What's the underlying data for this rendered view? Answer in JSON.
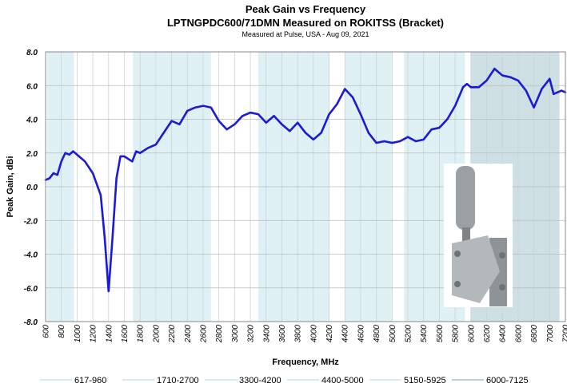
{
  "chart_data": {
    "type": "line",
    "title": "Peak Gain vs Frequency",
    "subtitle": "LPTNGPDC600/71DMN Measured on ROKITSS (Bracket)",
    "caption": "Measured at Pulse, USA - Aug 09, 2021",
    "x_label": "Frequency, MHz",
    "y_label": "Peak Gain, dBi",
    "xlim": [
      600,
      7200
    ],
    "xticks": [
      600,
      800,
      1000,
      1200,
      1400,
      1600,
      1800,
      2000,
      2200,
      2400,
      2600,
      2800,
      3000,
      3200,
      3400,
      3600,
      3800,
      4000,
      4200,
      4400,
      4600,
      4800,
      5000,
      5200,
      5400,
      5600,
      5800,
      6000,
      6200,
      6400,
      6600,
      6800,
      7000,
      7200
    ],
    "ylim": [
      -8,
      8
    ],
    "yticks": [
      {
        "value": -8,
        "label": "-8.0"
      },
      {
        "value": -6,
        "label": "-6.0"
      },
      {
        "value": -4,
        "label": "-4.0"
      },
      {
        "value": -2,
        "label": "-2.0"
      },
      {
        "value": 0,
        "label": "0.0"
      },
      {
        "value": 2,
        "label": "2.0"
      },
      {
        "value": 4,
        "label": "4.0"
      },
      {
        "value": 6,
        "label": "6.0"
      },
      {
        "value": 8,
        "label": "8.0"
      }
    ],
    "grid": true,
    "legend": "bottom",
    "bands": [
      {
        "name": "617-960",
        "start": 617,
        "end": 960,
        "color": "#d3ebf2"
      },
      {
        "name": "1710-2700",
        "start": 1710,
        "end": 2700,
        "color": "#d3ebf2"
      },
      {
        "name": "3300-4200",
        "start": 3300,
        "end": 4200,
        "color": "#d3ebf2"
      },
      {
        "name": "4400-5000",
        "start": 4400,
        "end": 5000,
        "color": "#d3ebf2"
      },
      {
        "name": "5150-5925",
        "start": 5150,
        "end": 5925,
        "color": "#d3ebf2"
      },
      {
        "name": "6000-7125",
        "start": 6000,
        "end": 7125,
        "color": "#b9d3d9"
      }
    ],
    "series": [
      {
        "color": "#1a1ad8",
        "x": [
          600,
          650,
          700,
          750,
          800,
          850,
          900,
          950,
          1000,
          1100,
          1200,
          1300,
          1350,
          1400,
          1450,
          1500,
          1550,
          1600,
          1700,
          1750,
          1800,
          1900,
          2000,
          2100,
          2200,
          2300,
          2400,
          2500,
          2600,
          2700,
          2800,
          2900,
          3000,
          3100,
          3200,
          3300,
          3400,
          3500,
          3600,
          3700,
          3800,
          3900,
          4000,
          4100,
          4200,
          4300,
          4400,
          4500,
          4600,
          4700,
          4800,
          4900,
          5000,
          5100,
          5200,
          5300,
          5400,
          5500,
          5600,
          5700,
          5800,
          5900,
          5950,
          6000,
          6100,
          6200,
          6300,
          6400,
          6500,
          6600,
          6700,
          6800,
          6900,
          7000,
          7050,
          7150,
          7200
        ],
        "values": [
          0.4,
          0.5,
          0.8,
          0.7,
          1.5,
          2.0,
          1.9,
          2.1,
          1.9,
          1.5,
          0.8,
          -0.5,
          -3.0,
          -6.2,
          -3.0,
          0.5,
          1.8,
          1.8,
          1.5,
          2.1,
          2.0,
          2.3,
          2.5,
          3.2,
          3.9,
          3.7,
          4.5,
          4.7,
          4.8,
          4.7,
          3.9,
          3.4,
          3.7,
          4.2,
          4.4,
          4.3,
          3.8,
          4.2,
          3.7,
          3.3,
          3.8,
          3.2,
          2.8,
          3.2,
          4.3,
          4.9,
          5.8,
          5.3,
          4.3,
          3.2,
          2.6,
          2.7,
          2.6,
          2.7,
          2.95,
          2.7,
          2.8,
          3.4,
          3.5,
          4.0,
          4.8,
          5.9,
          6.1,
          5.9,
          5.9,
          6.3,
          7.0,
          6.6,
          6.5,
          6.3,
          5.7,
          4.7,
          5.8,
          6.4,
          5.5,
          5.7,
          5.6
        ]
      }
    ]
  }
}
